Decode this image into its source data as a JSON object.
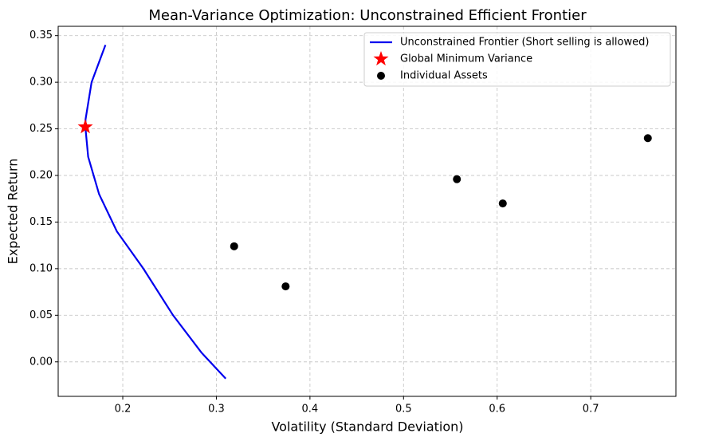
{
  "chart_data": {
    "type": "line",
    "title": "Mean-Variance Optimization: Unconstrained Efficient Frontier",
    "x_label": "Volatility (Standard Deviation)",
    "y_label": "Expected Return",
    "xlim": [
      0.131,
      0.791
    ],
    "ylim": [
      -0.037,
      0.36
    ],
    "xticks": [
      0.2,
      0.3,
      0.4,
      0.5,
      0.6,
      0.7
    ],
    "yticks": [
      {
        "value": 0,
        "label": "0.00"
      },
      0.05,
      {
        "value": 0.1,
        "label": "0.10"
      },
      0.15,
      {
        "value": 0.2,
        "label": "0.20"
      },
      0.25,
      {
        "value": 0.3,
        "label": "0.30"
      },
      0.35
    ],
    "grid": true,
    "legend": "upper right",
    "series": [
      {
        "name": "Unconstrained Frontier (Short selling is allowed)",
        "type": "line",
        "color": "#0000ee",
        "x": [
          0.1815,
          0.1667,
          0.1602,
          0.16,
          0.163,
          0.1747,
          0.1937,
          0.222,
          0.2537,
          0.284,
          0.31
        ],
        "values": [
          0.34,
          0.3,
          0.26,
          0.252,
          0.22,
          0.18,
          0.14,
          0.1,
          0.05,
          0.01,
          -0.018
        ]
      },
      {
        "name": "Global Minimum Variance",
        "type": "scatter",
        "marker": "star",
        "color": "#ff0000",
        "x": [
          0.16
        ],
        "values": [
          0.252
        ]
      },
      {
        "name": "Individual Assets",
        "type": "scatter",
        "marker": "circle",
        "color": "#000000",
        "x": [
          0.319,
          0.374,
          0.557,
          0.606,
          0.761
        ],
        "values": [
          0.124,
          0.081,
          0.196,
          0.17,
          0.24
        ]
      }
    ]
  }
}
